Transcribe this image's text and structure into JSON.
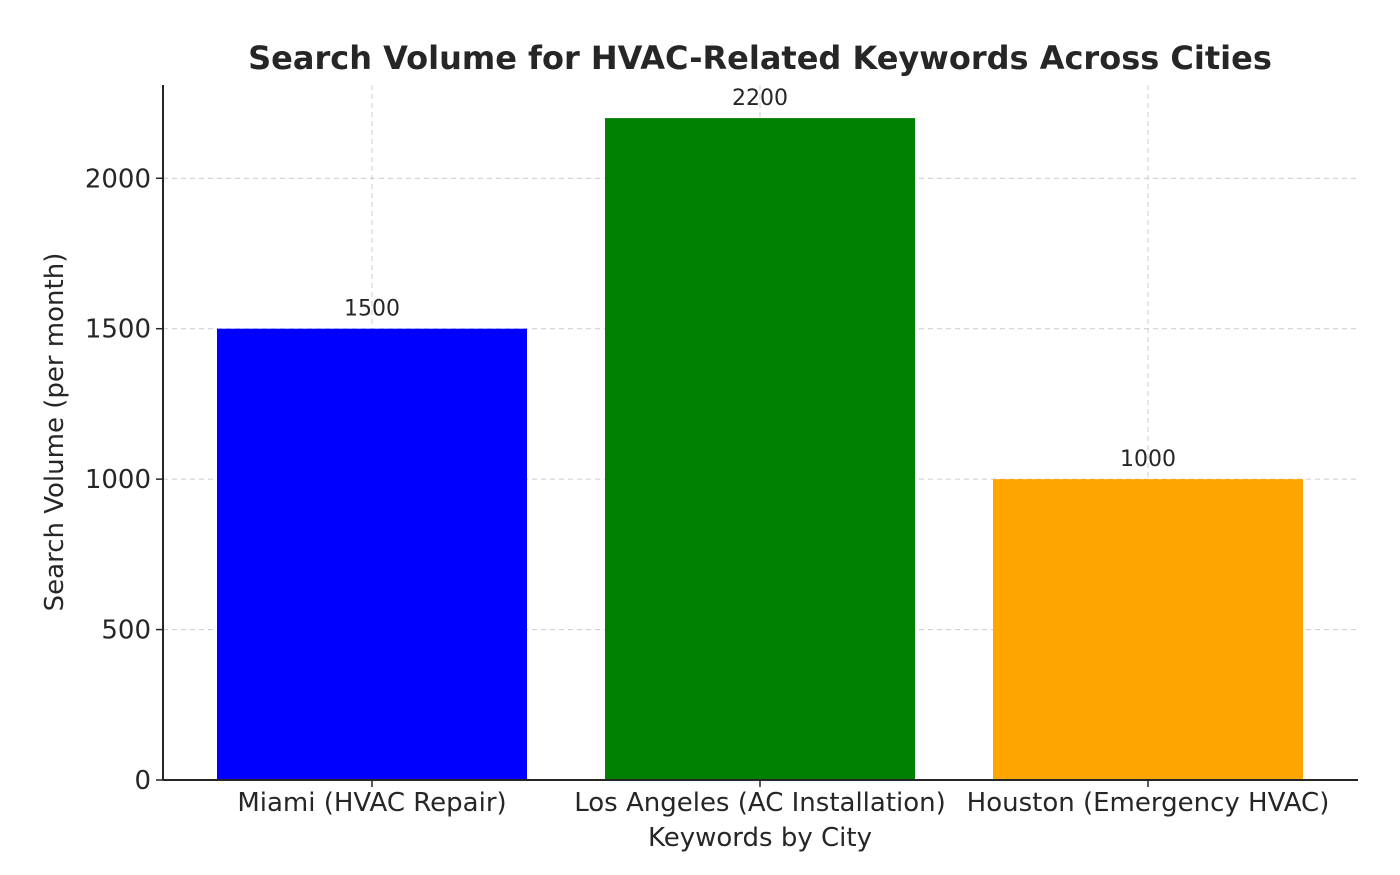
{
  "chart_data": {
    "type": "bar",
    "title": "Search Volume for HVAC-Related Keywords Across Cities",
    "xlabel": "Keywords by City",
    "ylabel": "Search Volume (per month)",
    "categories": [
      "Miami (HVAC Repair)",
      "Los Angeles (AC Installation)",
      "Houston (Emergency HVAC)"
    ],
    "values": [
      1500,
      2200,
      1000
    ],
    "colors": [
      "#0000ff",
      "#008000",
      "#ffa500"
    ],
    "ylim": [
      0,
      2310
    ],
    "yticks": [
      0,
      500,
      1000,
      1500,
      2000
    ],
    "grid": true,
    "data_labels": true
  }
}
